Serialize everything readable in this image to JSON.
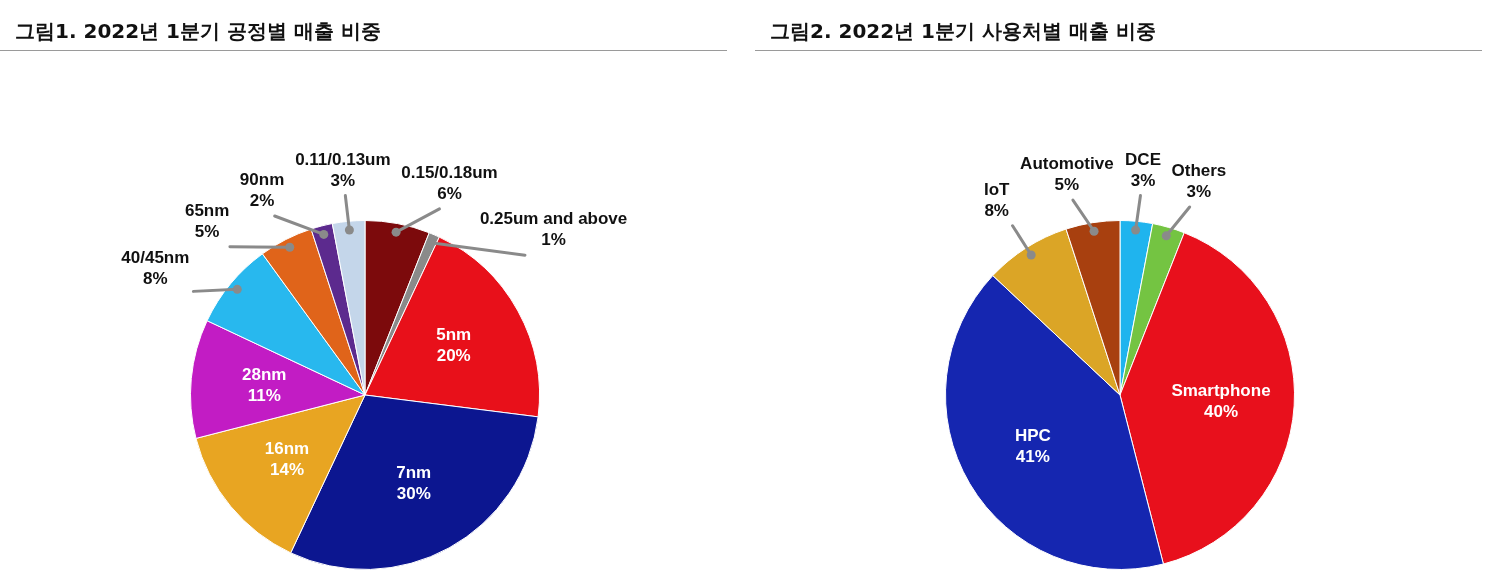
{
  "chart_data": [
    {
      "type": "pie",
      "title": "그림1. 2022년 1분기 공정별 매출 비중",
      "categories": [
        "0.15/0.18um",
        "0.25um and above",
        "5nm",
        "7nm",
        "16nm",
        "28nm",
        "40/45nm",
        "65nm",
        "90nm",
        "0.11/0.13um"
      ],
      "values": [
        6,
        1,
        20,
        30,
        14,
        11,
        8,
        5,
        2,
        3
      ],
      "value_labels": [
        "6%",
        "1%",
        "20%",
        "30%",
        "14%",
        "11%",
        "8%",
        "5%",
        "2%",
        "3%"
      ],
      "colors": [
        "#7c0a0c",
        "#8a8a8a",
        "#e8101a",
        "#0c1690",
        "#e8a522",
        "#c21cc4",
        "#28b8ee",
        "#e0641a",
        "#5c2a8e",
        "#c4d6ea"
      ]
    },
    {
      "type": "pie",
      "title": "그림2. 2022년 1분기 사용처별 매출 비중",
      "categories": [
        "DCE",
        "Others",
        "Smartphone",
        "HPC",
        "IoT",
        "Automotive"
      ],
      "values": [
        3,
        3,
        40,
        41,
        8,
        5
      ],
      "value_labels": [
        "3%",
        "3%",
        "40%",
        "41%",
        "8%",
        "5%"
      ],
      "colors": [
        "#1fb4ee",
        "#74c442",
        "#e8101c",
        "#1526b0",
        "#dba526",
        "#a8400f"
      ]
    }
  ]
}
